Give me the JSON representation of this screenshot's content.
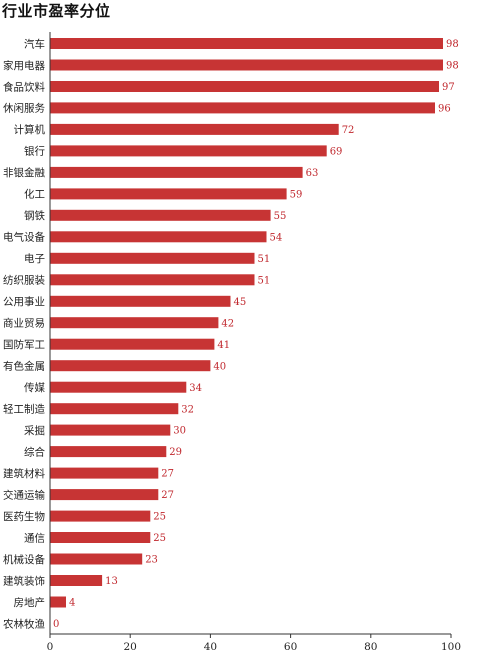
{
  "title": "行业市盈率分位",
  "colors": {
    "bar": "#c73434",
    "axis": "#333333"
  },
  "chart_data": {
    "type": "bar",
    "orientation": "horizontal",
    "title": "行业市盈率分位",
    "xlabel": "",
    "ylabel": "",
    "xlim": [
      0,
      100
    ],
    "xticks": [
      0,
      20,
      40,
      60,
      80,
      100
    ],
    "grid": false,
    "data_labels": true,
    "categories": [
      "汽车",
      "家用电器",
      "食品饮料",
      "休闲服务",
      "计算机",
      "银行",
      "非银金融",
      "化工",
      "钢铁",
      "电气设备",
      "电子",
      "纺织服装",
      "公用事业",
      "商业贸易",
      "国防军工",
      "有色金属",
      "传媒",
      "轻工制造",
      "采掘",
      "综合",
      "建筑材料",
      "交通运输",
      "医药生物",
      "通信",
      "机械设备",
      "建筑装饰",
      "房地产",
      "农林牧渔"
    ],
    "values": [
      98,
      98,
      97,
      96,
      72,
      69,
      63,
      59,
      55,
      54,
      51,
      51,
      45,
      42,
      41,
      40,
      34,
      32,
      30,
      29,
      27,
      27,
      25,
      25,
      23,
      13,
      4,
      0
    ]
  }
}
